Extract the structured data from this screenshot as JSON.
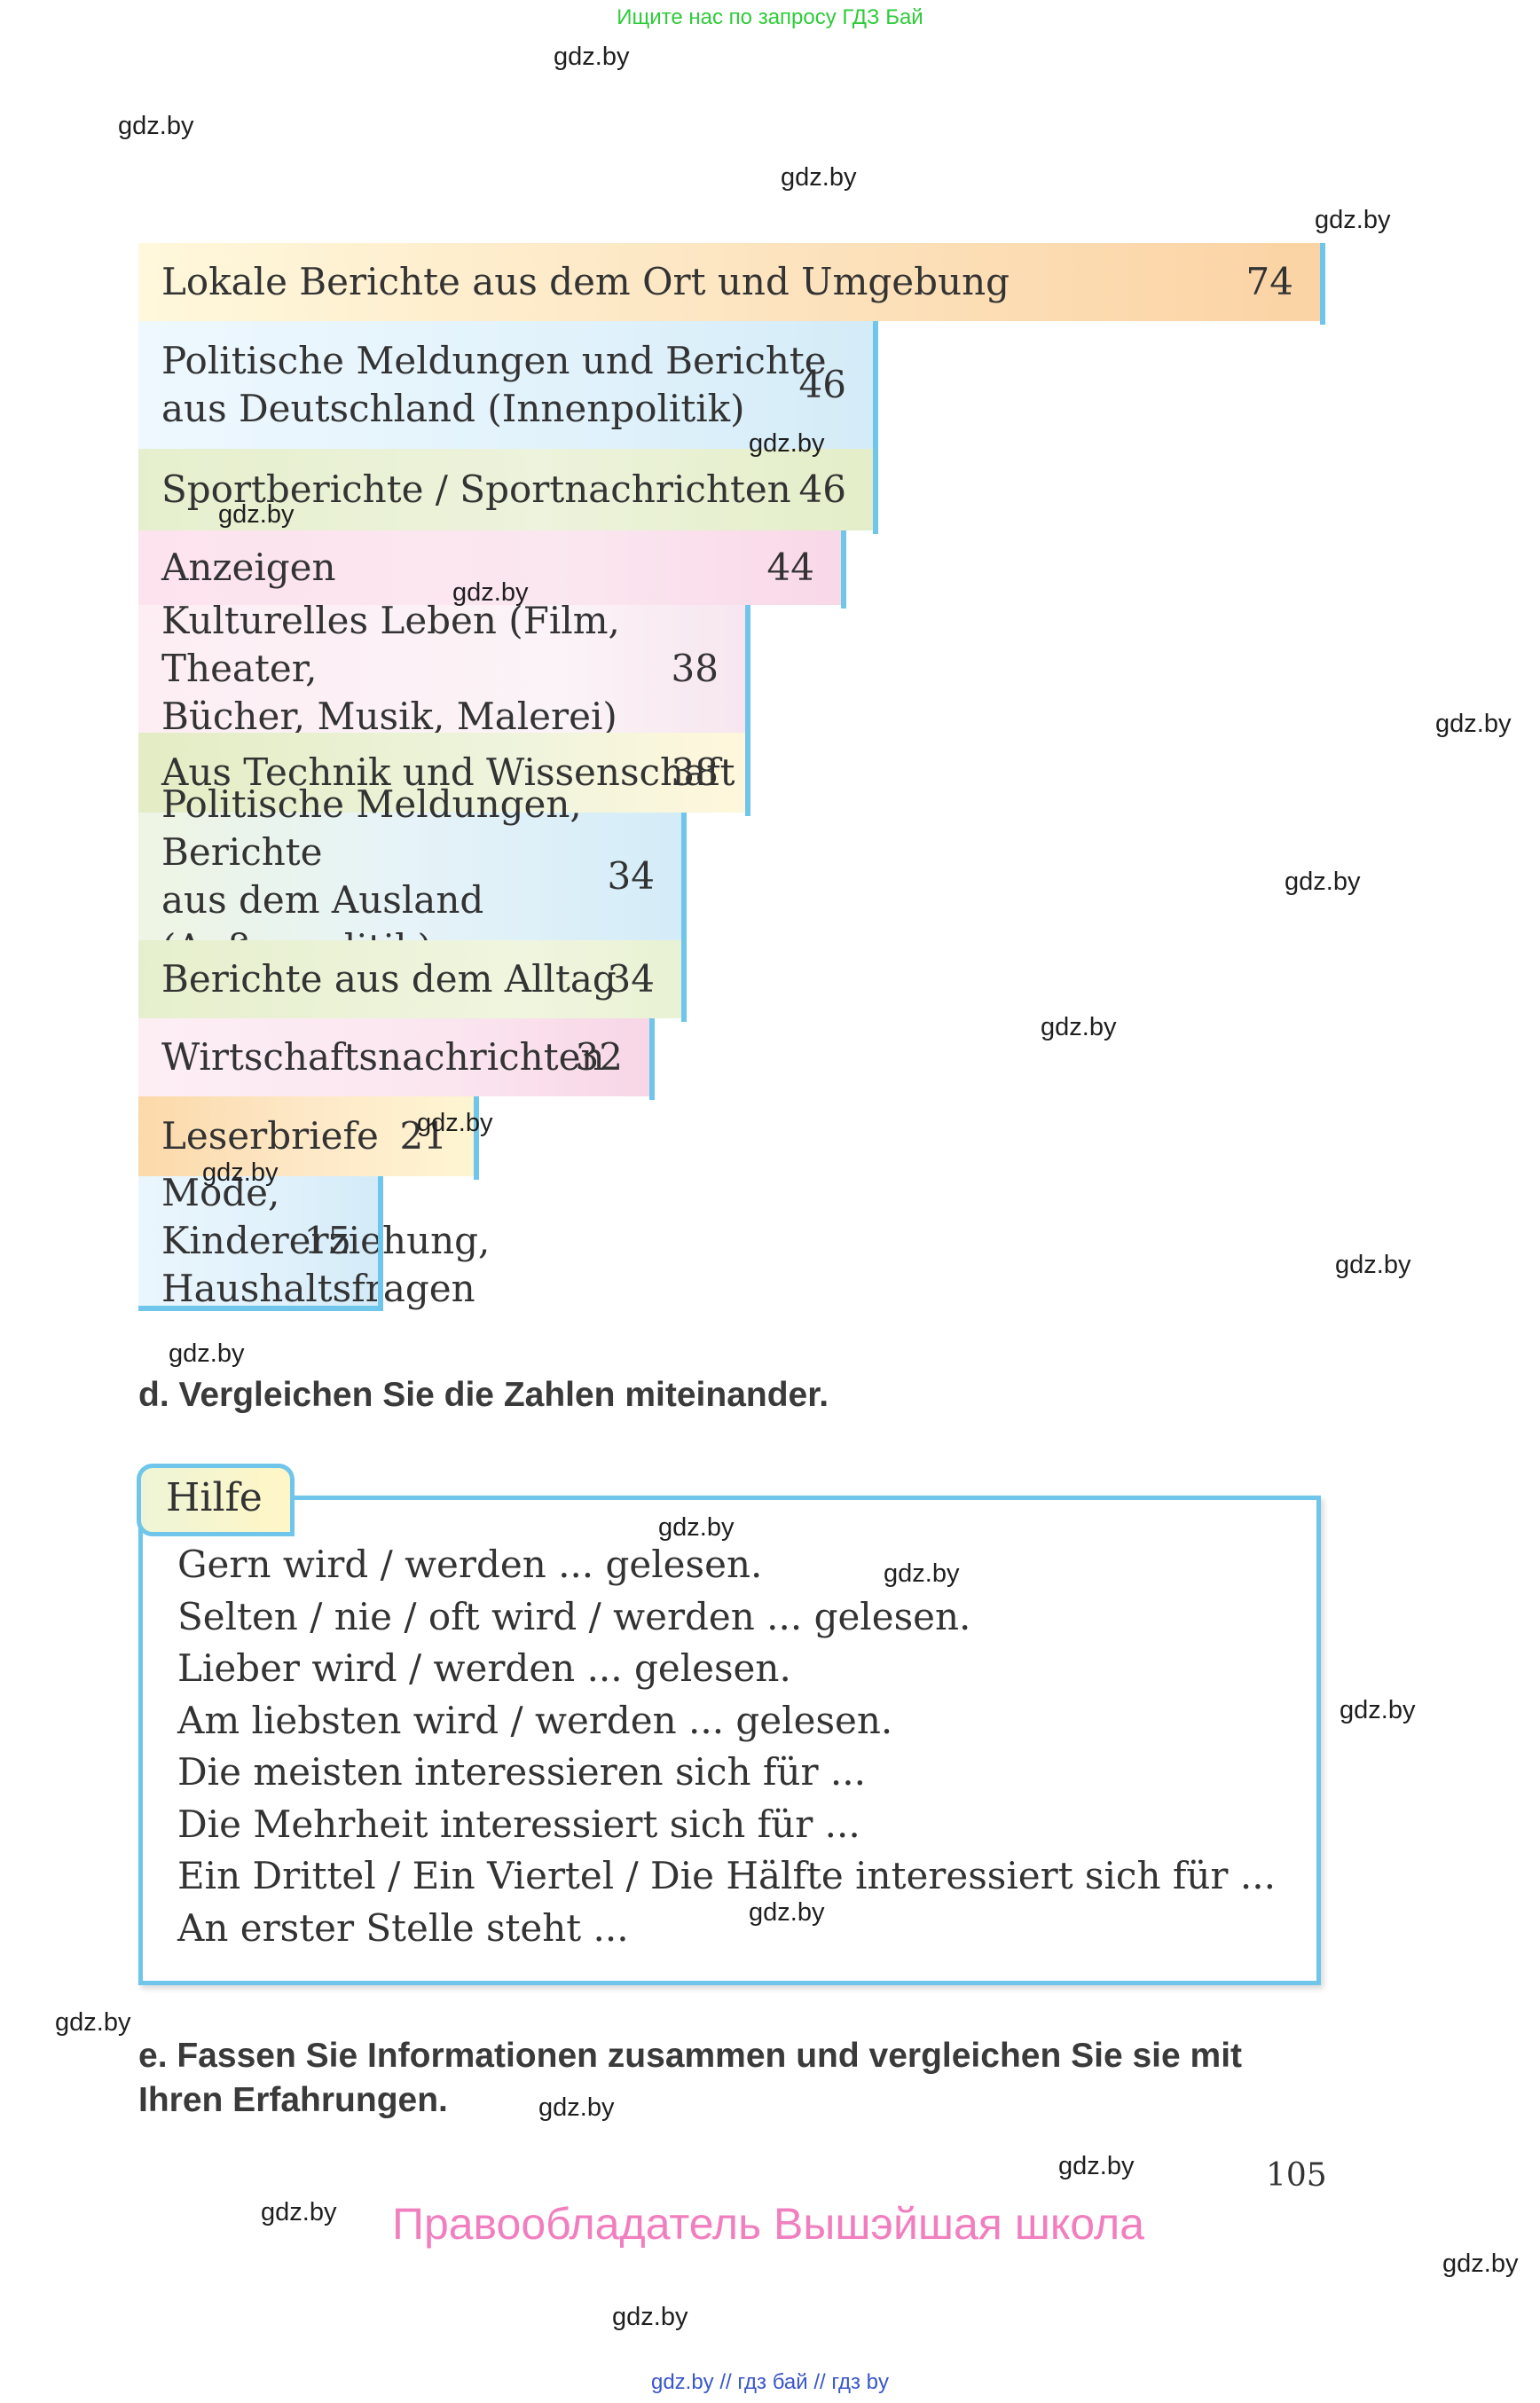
{
  "top_note": "Ищите нас по запросу ГДЗ Бай",
  "bottom_note": "gdz.by  //  гдз бай  //  гдз by",
  "watermark": "gdz.by",
  "chart_data": {
    "type": "bar",
    "categories": [
      "Lokale Berichte aus dem Ort und Umgebung",
      "Politische Meldungen und Berichte\naus Deutschland (Innenpolitik)",
      "Sportberichte / Sportnachrichten",
      "Anzeigen",
      "Kulturelles Leben (Film, Theater,\nBücher, Musik,  Malerei)",
      "Aus Technik und Wissenschaft",
      "Politische Meldungen, Berichte\naus dem Ausland (Außenpolitik)",
      "Berichte aus dem Alltag",
      "Wirtschaftsnachrichten",
      "Leserbriefe",
      "Mode, Kindererziehung,\nHaushaltsfragen"
    ],
    "values": [
      74,
      46,
      46,
      44,
      38,
      38,
      34,
      34,
      32,
      21,
      15
    ],
    "value_labels": [
      "74",
      "46",
      "46",
      "44",
      "38",
      "38",
      "34",
      "34",
      "32",
      "21",
      "15"
    ]
  },
  "task_d": "d. Vergleichen Sie die Zahlen miteinander.",
  "help": {
    "title": "Hilfe",
    "lines": [
      "Gern wird / werden ... gelesen.",
      "Selten / nie / oft wird / werden ... gelesen.",
      "Lieber wird / werden ... gelesen.",
      "Am liebsten wird / werden ... gelesen.",
      "Die meisten interessieren sich für ...",
      "Die Mehrheit interessiert sich für ...",
      "Ein Drittel / Ein Viertel / Die Hälfte interessiert sich für ...",
      "An erster Stelle steht ..."
    ]
  },
  "task_e_line1": "e. Fassen Sie Informationen zusammen und vergleichen Sie sie mit",
  "task_e_line2": "Ihren Erfahrungen.",
  "page_number": "105",
  "rights": "Правообладатель Вышэйшая школа"
}
